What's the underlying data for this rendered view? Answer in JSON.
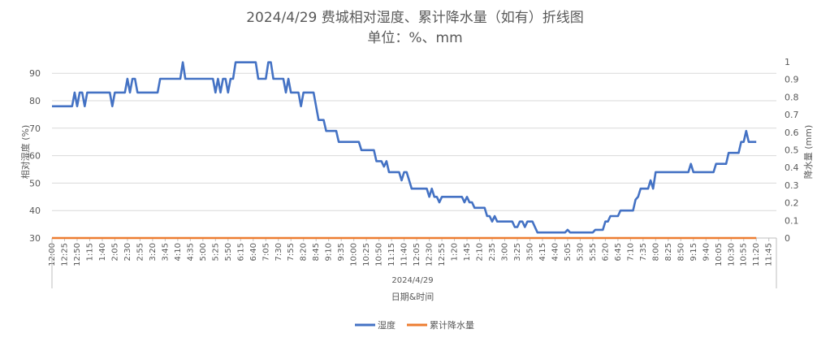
{
  "chart_data": {
    "type": "line",
    "title": "2024/4/29 费城相对湿度、累计降水量（如有）折线图",
    "subtitle": "单位：%、mm",
    "group_label": "2024/4/29",
    "xlabel": "日期&时间",
    "ylabel_left": "相对湿度 (%)",
    "ylabel_right": "降水量 (mm)",
    "ylim_left": [
      30,
      95
    ],
    "yticks_left": [
      "30",
      "40",
      "50",
      "60",
      "70",
      "80",
      "90"
    ],
    "ylim_right": [
      0,
      1
    ],
    "yticks_right": [
      "0",
      "0.1",
      "0.2",
      "0.3",
      "0.4",
      "0.5",
      "0.6",
      "0.7",
      "0.8",
      "0.9",
      "1"
    ],
    "x_ticks": [
      "12:00",
      "12:25",
      "12:50",
      "1:15",
      "1:40",
      "2:05",
      "2:30",
      "2:55",
      "3:20",
      "3:45",
      "4:10",
      "4:35",
      "5:00",
      "5:25",
      "5:50",
      "6:15",
      "6:40",
      "7:05",
      "7:30",
      "7:55",
      "8:20",
      "8:45",
      "9:10",
      "9:35",
      "10:00",
      "10:25",
      "10:50",
      "11:15",
      "11:40",
      "12:05",
      "12:30",
      "12:55",
      "1:20",
      "1:45",
      "2:10",
      "2:35",
      "3:00",
      "3:25",
      "3:50",
      "4:15",
      "4:40",
      "5:05",
      "5:30",
      "5:55",
      "6:20",
      "6:45",
      "7:10",
      "7:35",
      "8:00",
      "8:25",
      "8:50",
      "9:15",
      "9:40",
      "10:05",
      "10:30",
      "10:55",
      "11:20",
      "11:45"
    ],
    "x_minutes_range": [
      0,
      1440
    ],
    "grid": true,
    "legend_position": "bottom",
    "series": [
      {
        "name": "湿度",
        "axis": "left",
        "color": "#4472C4",
        "points": [
          [
            0,
            78
          ],
          [
            15,
            78
          ],
          [
            25,
            78
          ],
          [
            35,
            78
          ],
          [
            40,
            78
          ],
          [
            45,
            83
          ],
          [
            50,
            78
          ],
          [
            55,
            83
          ],
          [
            60,
            83
          ],
          [
            65,
            78
          ],
          [
            70,
            83
          ],
          [
            75,
            83
          ],
          [
            100,
            83
          ],
          [
            115,
            83
          ],
          [
            120,
            78
          ],
          [
            125,
            83
          ],
          [
            145,
            83
          ],
          [
            150,
            88
          ],
          [
            155,
            83
          ],
          [
            160,
            88
          ],
          [
            165,
            88
          ],
          [
            170,
            83
          ],
          [
            210,
            83
          ],
          [
            215,
            88
          ],
          [
            255,
            88
          ],
          [
            260,
            94
          ],
          [
            265,
            88
          ],
          [
            320,
            88
          ],
          [
            325,
            83
          ],
          [
            330,
            88
          ],
          [
            335,
            83
          ],
          [
            340,
            88
          ],
          [
            345,
            88
          ],
          [
            350,
            83
          ],
          [
            355,
            88
          ],
          [
            360,
            88
          ],
          [
            365,
            94
          ],
          [
            405,
            94
          ],
          [
            410,
            88
          ],
          [
            425,
            88
          ],
          [
            430,
            94
          ],
          [
            435,
            94
          ],
          [
            440,
            88
          ],
          [
            460,
            88
          ],
          [
            465,
            83
          ],
          [
            470,
            88
          ],
          [
            475,
            83
          ],
          [
            490,
            83
          ],
          [
            495,
            78
          ],
          [
            500,
            83
          ],
          [
            520,
            83
          ],
          [
            525,
            78
          ],
          [
            530,
            73
          ],
          [
            540,
            73
          ],
          [
            545,
            69
          ],
          [
            565,
            69
          ],
          [
            570,
            65
          ],
          [
            610,
            65
          ],
          [
            615,
            62
          ],
          [
            640,
            62
          ],
          [
            645,
            58
          ],
          [
            655,
            58
          ],
          [
            660,
            56
          ],
          [
            665,
            58
          ],
          [
            670,
            54
          ],
          [
            690,
            54
          ],
          [
            695,
            51
          ],
          [
            700,
            54
          ],
          [
            705,
            54
          ],
          [
            710,
            51
          ],
          [
            715,
            48
          ],
          [
            745,
            48
          ],
          [
            750,
            45
          ],
          [
            755,
            48
          ],
          [
            760,
            45
          ],
          [
            765,
            45
          ],
          [
            770,
            43
          ],
          [
            775,
            45
          ],
          [
            815,
            45
          ],
          [
            820,
            43
          ],
          [
            825,
            45
          ],
          [
            830,
            43
          ],
          [
            835,
            43
          ],
          [
            840,
            41
          ],
          [
            860,
            41
          ],
          [
            865,
            38
          ],
          [
            870,
            38
          ],
          [
            875,
            36
          ],
          [
            880,
            38
          ],
          [
            885,
            36
          ],
          [
            915,
            36
          ],
          [
            920,
            34
          ],
          [
            925,
            34
          ],
          [
            930,
            36
          ],
          [
            935,
            36
          ],
          [
            940,
            34
          ],
          [
            945,
            36
          ],
          [
            955,
            36
          ],
          [
            960,
            34
          ],
          [
            965,
            32
          ],
          [
            1020,
            32
          ],
          [
            1025,
            33
          ],
          [
            1030,
            32
          ],
          [
            1075,
            32
          ],
          [
            1080,
            33
          ],
          [
            1095,
            33
          ],
          [
            1100,
            36
          ],
          [
            1105,
            36
          ],
          [
            1110,
            38
          ],
          [
            1125,
            38
          ],
          [
            1130,
            40
          ],
          [
            1155,
            40
          ],
          [
            1160,
            44
          ],
          [
            1165,
            45
          ],
          [
            1170,
            48
          ],
          [
            1185,
            48
          ],
          [
            1190,
            51
          ],
          [
            1195,
            48
          ],
          [
            1200,
            54
          ],
          [
            1265,
            54
          ],
          [
            1270,
            57
          ],
          [
            1275,
            54
          ],
          [
            1315,
            54
          ],
          [
            1320,
            57
          ],
          [
            1340,
            57
          ],
          [
            1345,
            61
          ],
          [
            1365,
            61
          ],
          [
            1370,
            65
          ],
          [
            1375,
            65
          ],
          [
            1380,
            69
          ],
          [
            1385,
            65
          ],
          [
            1400,
            65
          ]
        ]
      },
      {
        "name": "累计降水量",
        "axis": "right",
        "color": "#ED7D31",
        "points": [
          [
            0,
            0
          ],
          [
            1400,
            0
          ]
        ]
      }
    ]
  }
}
